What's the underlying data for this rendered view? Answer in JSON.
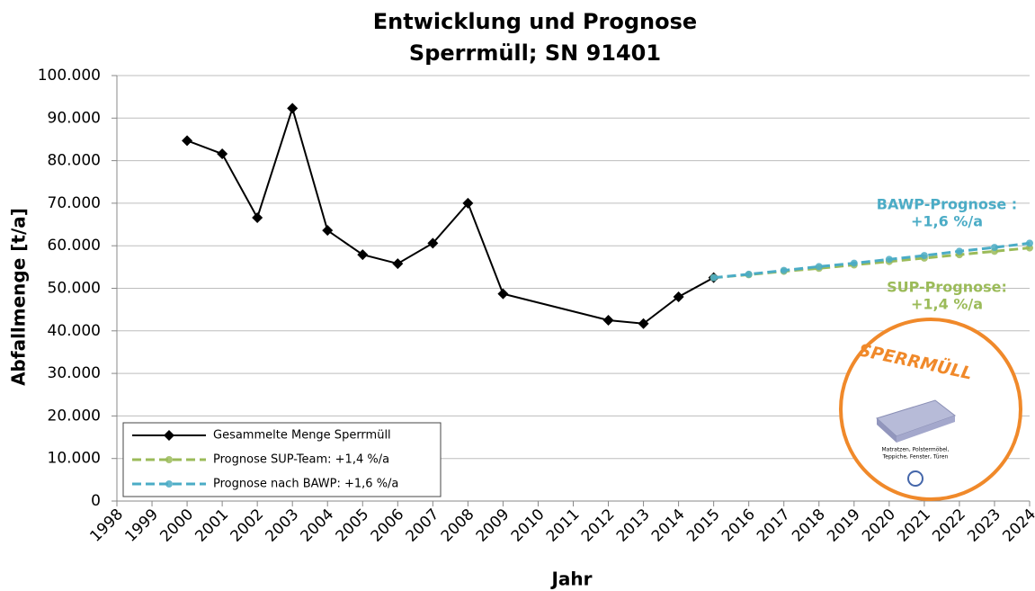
{
  "chart_data": {
    "type": "line",
    "title": "Entwicklung und Prognose",
    "subtitle": "Sperrmüll; SN 91401",
    "x_label": "Jahr",
    "y_label": "Abfallmenge [t/a]",
    "xlim": [
      1998,
      2024
    ],
    "xticks": [
      1998,
      1999,
      2000,
      2001,
      2002,
      2003,
      2004,
      2005,
      2006,
      2007,
      2008,
      2009,
      2010,
      2011,
      2012,
      2013,
      2014,
      2015,
      2016,
      2017,
      2018,
      2019,
      2020,
      2021,
      2022,
      2023,
      2024
    ],
    "ylim": [
      0,
      100000
    ],
    "yticks": [
      0,
      {
        "value": 10000,
        "label": "10.000"
      },
      {
        "value": 20000,
        "label": "20.000"
      },
      {
        "value": 30000,
        "label": "30.000"
      },
      {
        "value": 40000,
        "label": "40.000"
      },
      {
        "value": 50000,
        "label": "50.000"
      },
      {
        "value": 60000,
        "label": "60.000"
      },
      {
        "value": 70000,
        "label": "70.000"
      },
      {
        "value": 80000,
        "label": "80.000"
      },
      {
        "value": 90000,
        "label": "90.000"
      },
      {
        "value": 100000,
        "label": "100.000"
      }
    ],
    "grid": true,
    "legend": "bottom-left",
    "series": [
      {
        "name": "Gesammelte Menge Sperrmüll",
        "color": "#000000",
        "dash": false,
        "x": [
          2000,
          2001,
          2002,
          2003,
          2004,
          2005,
          2006,
          2007,
          2008,
          2009,
          2012,
          2013,
          2014,
          2015
        ],
        "values": [
          84700,
          81600,
          66600,
          92300,
          63600,
          57900,
          55800,
          60600,
          70000,
          48700,
          42500,
          41700,
          48000,
          52500
        ]
      },
      {
        "name": "Prognose SUP-Team: +1,4 %/a",
        "color": "#9bbb59",
        "dash": true,
        "x": [
          2015,
          2016,
          2017,
          2018,
          2019,
          2020,
          2021,
          2022,
          2023,
          2024
        ],
        "values": [
          52500,
          53200,
          54000,
          54700,
          55500,
          56300,
          57100,
          57900,
          58700,
          59500
        ]
      },
      {
        "name": "Prognose nach BAWP: +1,6 %/a",
        "color": "#4bacc6",
        "dash": true,
        "x": [
          2015,
          2016,
          2017,
          2018,
          2019,
          2020,
          2021,
          2022,
          2023,
          2024
        ],
        "values": [
          52500,
          53300,
          54200,
          55100,
          55900,
          56800,
          57700,
          58700,
          59600,
          60600
        ]
      }
    ],
    "annotations": [
      {
        "text": "BAWP-Prognose :",
        "color": "#4bacc6"
      },
      {
        "text": "+1,6 %/a",
        "color": "#4bacc6"
      },
      {
        "text": "SUP-Prognose:",
        "color": "#9bbb59"
      },
      {
        "text": "+1,4  %/a",
        "color": "#9bbb59"
      }
    ]
  },
  "logo": {
    "title": "SPERRMÜLL",
    "caption_1": "Matratzen, Polstermöbel,",
    "caption_2": "Teppiche, Fenster, Türen"
  }
}
